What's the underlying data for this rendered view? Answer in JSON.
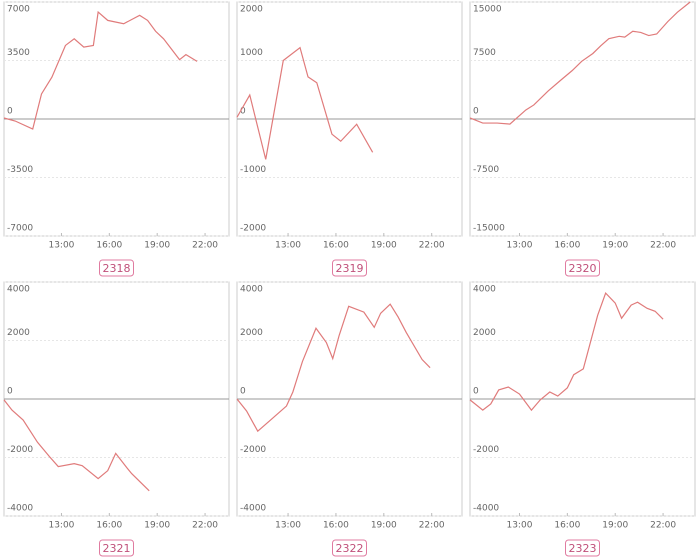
{
  "chart_data": [
    {
      "type": "line",
      "title": "2318",
      "color": "#e07b7b",
      "x": [
        9.4,
        10.1,
        11.2,
        11.75,
        12.4,
        13.25,
        13.8,
        14.4,
        15,
        15.3,
        15.9,
        16.9,
        17.9,
        18.4,
        18.9,
        19.4,
        20.4,
        20.8,
        21.5
      ],
      "values": [
        60,
        -120,
        -600,
        1500,
        2500,
        4400,
        4800,
        4300,
        4400,
        6400,
        5900,
        5700,
        6200,
        5900,
        5250,
        4800,
        3550,
        3850,
        3450
      ],
      "xlim": [
        9.4,
        23.5
      ],
      "ylim": [
        -7000,
        7000
      ],
      "yticks": [
        7000,
        3500,
        0,
        -3500,
        -7000
      ],
      "xticks": [
        {
          "value": 13,
          "label": "13:00"
        },
        {
          "value": 16,
          "label": "16:00"
        },
        {
          "value": 19,
          "label": "19:00"
        },
        {
          "value": 22,
          "label": "22:00"
        }
      ]
    },
    {
      "type": "line",
      "title": "2319",
      "color": "#e07b7b",
      "x": [
        9.8,
        10.6,
        11.6,
        12.7,
        13.75,
        14.25,
        14.8,
        15.75,
        16.3,
        17.3,
        18.3
      ],
      "values": [
        30,
        410,
        -690,
        1000,
        1220,
        720,
        620,
        -260,
        -380,
        -90,
        -570
      ],
      "xlim": [
        9.8,
        23.9
      ],
      "ylim": [
        -2000,
        2000
      ],
      "yticks": [
        2000,
        1000,
        0,
        -1000,
        -2000
      ],
      "xticks": [
        {
          "value": 13,
          "label": "13:00"
        },
        {
          "value": 16,
          "label": "16:00"
        },
        {
          "value": 19,
          "label": "19:00"
        },
        {
          "value": 22,
          "label": "22:00"
        }
      ]
    },
    {
      "type": "line",
      "title": "2320",
      "color": "#e07b7b",
      "x": [
        9.9,
        10.7,
        11.6,
        12.4,
        13.4,
        13.9,
        14.8,
        15.6,
        16.3,
        16.9,
        17.6,
        18.1,
        18.6,
        19.25,
        19.6,
        20.1,
        20.6,
        21.1,
        21.6,
        22.3,
        22.9,
        23.7
      ],
      "values": [
        130,
        -520,
        -520,
        -650,
        1160,
        1800,
        3600,
        5000,
        6200,
        7400,
        8400,
        9400,
        10300,
        10600,
        10500,
        11250,
        11100,
        10700,
        10900,
        12500,
        13700,
        15000
      ],
      "xlim": [
        9.9,
        24
      ],
      "ylim": [
        -15000,
        15000
      ],
      "yticks": [
        15000,
        7500,
        0,
        -7500,
        -15000
      ],
      "xticks": [
        {
          "value": 13,
          "label": "13:00"
        },
        {
          "value": 16,
          "label": "16:00"
        },
        {
          "value": 19,
          "label": "19:00"
        },
        {
          "value": 22,
          "label": "22:00"
        }
      ]
    },
    {
      "type": "line",
      "title": "2321",
      "color": "#e07b7b",
      "x": [
        9.4,
        9.9,
        10.6,
        11.5,
        12.25,
        12.8,
        13.8,
        14.3,
        15.3,
        15.9,
        16.4,
        17.1,
        17.4,
        18.5
      ],
      "values": [
        -30,
        -380,
        -720,
        -1480,
        -1970,
        -2310,
        -2210,
        -2280,
        -2720,
        -2450,
        -1860,
        -2350,
        -2550,
        -3140
      ],
      "xlim": [
        9.4,
        23.5
      ],
      "ylim": [
        -4000,
        4000
      ],
      "yticks": [
        4000,
        2000,
        0,
        -2000,
        -4000
      ],
      "xticks": [
        {
          "value": 13,
          "label": "13:00"
        },
        {
          "value": 16,
          "label": "16:00"
        },
        {
          "value": 19,
          "label": "19:00"
        },
        {
          "value": 22,
          "label": "22:00"
        }
      ]
    },
    {
      "type": "line",
      "title": "2322",
      "color": "#e07b7b",
      "x": [
        9.8,
        10.4,
        11.1,
        11.9,
        12.9,
        13.3,
        13.9,
        14.75,
        15.4,
        15.8,
        16.2,
        16.8,
        17.75,
        18.4,
        18.8,
        19.4,
        19.9,
        20.4,
        21.4,
        21.9
      ],
      "values": [
        0,
        -410,
        -1100,
        -720,
        -240,
        240,
        1280,
        2420,
        1930,
        1380,
        2170,
        3170,
        2970,
        2450,
        2930,
        3240,
        2800,
        2280,
        1350,
        1070
      ],
      "xlim": [
        9.8,
        23.9
      ],
      "ylim": [
        -4000,
        4000
      ],
      "yticks": [
        4000,
        2000,
        0,
        -2000,
        -4000
      ],
      "xticks": [
        {
          "value": 13,
          "label": "13:00"
        },
        {
          "value": 16,
          "label": "16:00"
        },
        {
          "value": 19,
          "label": "19:00"
        },
        {
          "value": 22,
          "label": "22:00"
        }
      ]
    },
    {
      "type": "line",
      "title": "2323",
      "color": "#e07b7b",
      "x": [
        9.9,
        10.7,
        11.2,
        11.7,
        12.3,
        13,
        13.75,
        14.3,
        14.9,
        15.4,
        16,
        16.4,
        17,
        17.9,
        18.4,
        19,
        19.4,
        20,
        20.4,
        21,
        21.5,
        22
      ],
      "values": [
        -30,
        -380,
        -170,
        310,
        410,
        170,
        -380,
        -30,
        240,
        100,
        380,
        830,
        1030,
        2860,
        3620,
        3280,
        2760,
        3210,
        3310,
        3100,
        3000,
        2730
      ],
      "xlim": [
        9.9,
        24
      ],
      "ylim": [
        -4000,
        4000
      ],
      "yticks": [
        4000,
        2000,
        0,
        -2000,
        -4000
      ],
      "xticks": [
        {
          "value": 13,
          "label": "13:00"
        },
        {
          "value": 16,
          "label": "16:00"
        },
        {
          "value": 19,
          "label": "19:00"
        },
        {
          "value": 22,
          "label": "22:00"
        }
      ]
    }
  ]
}
